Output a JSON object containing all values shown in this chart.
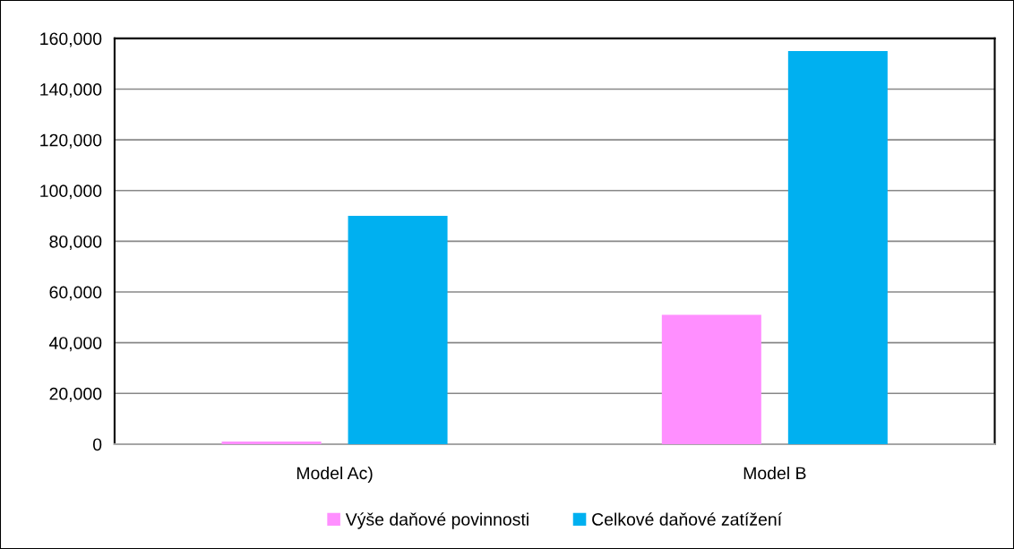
{
  "chart_data": {
    "type": "bar",
    "categories": [
      "Model Ac)",
      "Model B"
    ],
    "series": [
      {
        "name": "Výše daňové povinnosti",
        "color": "#ff8fff",
        "values": [
          1000,
          51000
        ]
      },
      {
        "name": "Celkové daňové zatížení",
        "color": "#00b0f0",
        "values": [
          90000,
          155000
        ]
      }
    ],
    "ylim": [
      0,
      160000
    ],
    "yticks": [
      0,
      {
        "value": 20000,
        "label": "20,000"
      },
      {
        "value": 40000,
        "label": "40,000"
      },
      {
        "value": 60000,
        "label": "60,000"
      },
      {
        "value": 80000,
        "label": "80,000"
      },
      {
        "value": 100000,
        "label": "100,000"
      },
      {
        "value": 120000,
        "label": "120,000"
      },
      {
        "value": 140000,
        "label": "140,000"
      },
      {
        "value": 160000,
        "label": "160,000"
      }
    ],
    "grid": "y",
    "legend": "bottom"
  }
}
